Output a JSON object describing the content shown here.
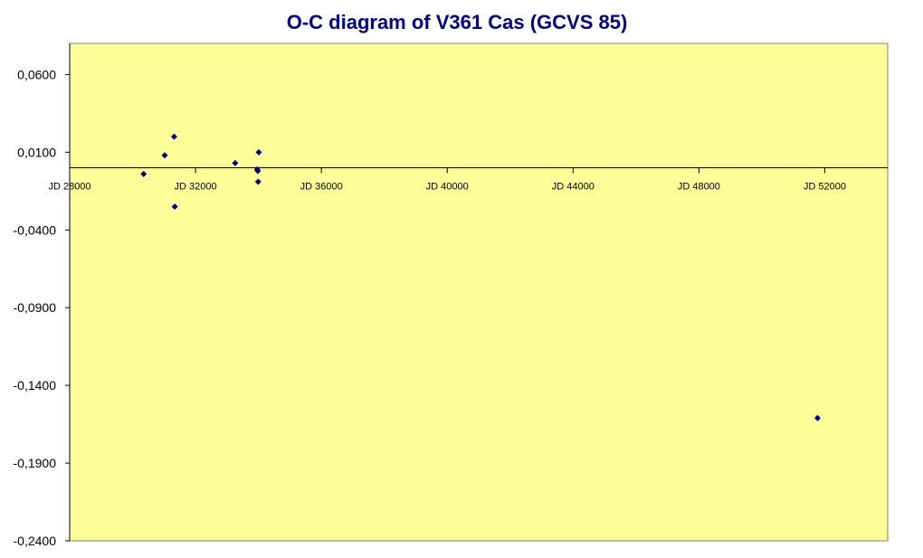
{
  "chart_data": {
    "type": "scatter",
    "title": "O-C diagram of V361 Cas (GCVS 85)",
    "xlabel": "",
    "ylabel": "",
    "xlim": [
      28000,
      54000
    ],
    "ylim": [
      -0.24,
      0.08
    ],
    "x_axis_crosses_y": 0.0,
    "x_ticks": [
      28000,
      32000,
      36000,
      40000,
      44000,
      48000,
      52000
    ],
    "x_tick_labels": [
      "JD 28000",
      "JD 32000",
      "JD 36000",
      "JD 40000",
      "JD 44000",
      "JD 48000",
      "JD 52000"
    ],
    "y_ticks": [
      0.06,
      0.01,
      -0.04,
      -0.09,
      -0.14,
      -0.19,
      -0.24
    ],
    "y_tick_labels": [
      "0,0600",
      "0,0100",
      "-0,0400",
      "-0,0900",
      "-0,1400",
      "-0,1900",
      "-0,2400"
    ],
    "grid": false,
    "legend": "none",
    "series": [
      {
        "points": [
          {
            "x": 30350,
            "y": -0.004
          },
          {
            "x": 31020,
            "y": 0.008
          },
          {
            "x": 31320,
            "y": 0.02
          },
          {
            "x": 31340,
            "y": -0.025
          },
          {
            "x": 33260,
            "y": 0.003
          },
          {
            "x": 33960,
            "y": -0.001
          },
          {
            "x": 33980,
            "y": -0.002
          },
          {
            "x": 33990,
            "y": -0.009
          },
          {
            "x": 34010,
            "y": 0.01
          },
          {
            "x": 51770,
            "y": -0.161
          }
        ]
      }
    ],
    "colors": {
      "plot_area": "#FFFF99",
      "marker": "#000080",
      "title": "#000080",
      "axis": "#000000"
    }
  }
}
